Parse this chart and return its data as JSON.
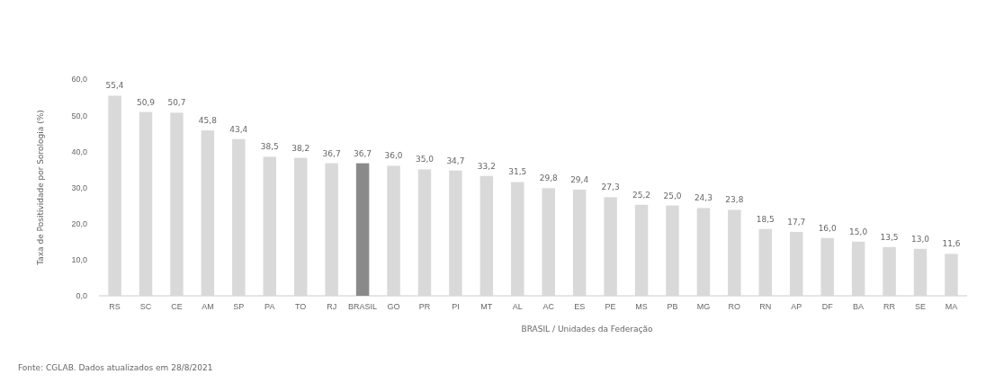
{
  "chart_data": {
    "type": "bar",
    "xlabel": "BRASIL / Unidades da Federação",
    "ylabel": "Taxa de Positividade por Sorologia (%)",
    "categories": [
      "RS",
      "SC",
      "CE",
      "AM",
      "SP",
      "PA",
      "TO",
      "RJ",
      "BRASIL",
      "GO",
      "PR",
      "PI",
      "MT",
      "AL",
      "AC",
      "ES",
      "PE",
      "MS",
      "PB",
      "MG",
      "RO",
      "RN",
      "AP",
      "DF",
      "BA",
      "RR",
      "SE",
      "MA"
    ],
    "values": [
      55.4,
      50.9,
      50.7,
      45.8,
      43.4,
      38.5,
      38.2,
      36.7,
      36.7,
      36.0,
      35.0,
      34.7,
      33.2,
      31.5,
      29.8,
      29.4,
      27.3,
      25.2,
      25.0,
      24.3,
      23.8,
      18.5,
      17.7,
      16.0,
      15.0,
      13.5,
      13.0,
      11.6
    ],
    "colors": [
      "#d9d9d9",
      "#d9d9d9",
      "#d9d9d9",
      "#d9d9d9",
      "#d9d9d9",
      "#d9d9d9",
      "#d9d9d9",
      "#d9d9d9",
      "#8a8a8a",
      "#d9d9d9",
      "#d9d9d9",
      "#d9d9d9",
      "#d9d9d9",
      "#d9d9d9",
      "#d9d9d9",
      "#d9d9d9",
      "#d9d9d9",
      "#d9d9d9",
      "#d9d9d9",
      "#d9d9d9",
      "#d9d9d9",
      "#d9d9d9",
      "#d9d9d9",
      "#d9d9d9",
      "#d9d9d9",
      "#d9d9d9",
      "#d9d9d9",
      "#d9d9d9"
    ],
    "value_labels": [
      "55,4",
      "50,9",
      "50,7",
      "45,8",
      "43,4",
      "38,5",
      "38,2",
      "36,7",
      "36,7",
      "36,0",
      "35,0",
      "34,7",
      "33,2",
      "31,5",
      "29,8",
      "29,4",
      "27,3",
      "25,2",
      "25,0",
      "24,3",
      "23,8",
      "18,5",
      "17,7",
      "16,0",
      "15,0",
      "13,5",
      "13,0",
      "11,6"
    ],
    "ylim": [
      0,
      60
    ],
    "yticks": [
      {
        "value": 0,
        "label": "0,0"
      },
      {
        "value": 10,
        "label": "10,0"
      },
      {
        "value": 20,
        "label": "20,0"
      },
      {
        "value": 30,
        "label": "30,0"
      },
      {
        "value": 40,
        "label": "40,0"
      },
      {
        "value": 50,
        "label": "50,0"
      },
      {
        "value": 60,
        "label": "60,0"
      }
    ],
    "annotations": [
      "Fonte: CGLAB. Dados atualizados em 28/8/2021"
    ]
  }
}
